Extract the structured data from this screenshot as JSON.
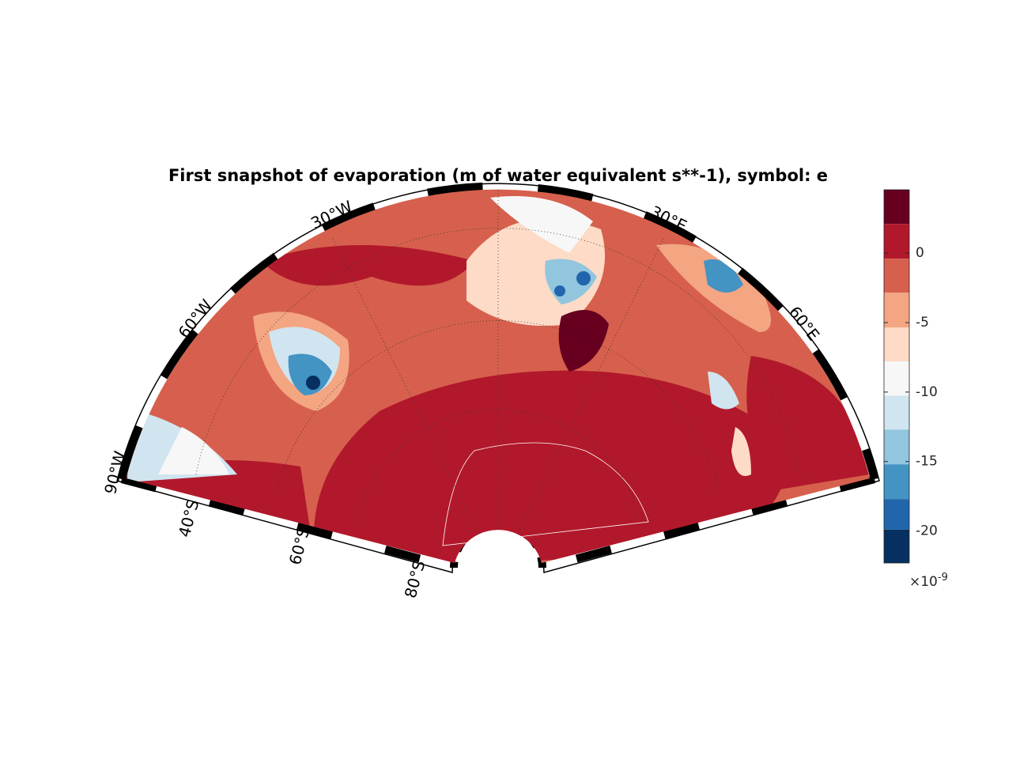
{
  "title": "First snapshot of evaporation (m of water equivalent s**-1), symbol: e",
  "longitude_labels": [
    "30°W",
    "60°W",
    "90°W",
    "30°E",
    "60°E"
  ],
  "latitude_labels": [
    "40°S",
    "60°S",
    "80°S"
  ],
  "colorbar": {
    "ylim": [
      -22.3,
      4.56
    ],
    "yticks": [
      0,
      -5,
      -10,
      -15,
      -20
    ],
    "levels": [
      4.56,
      2.1,
      -0.4,
      -2.85,
      -5.36,
      -7.8,
      -10.26,
      -12.7,
      -15.2,
      -17.7,
      -19.9,
      -22.3
    ],
    "colors": [
      "#67001f",
      "#b2182b",
      "#d6604d",
      "#f4a582",
      "#fddbc7",
      "#f7f7f7",
      "#d1e5f0",
      "#92c5de",
      "#4393c3",
      "#2166ac",
      "#053061"
    ],
    "scale_base": "×10",
    "scale_exponent": "-9"
  }
}
